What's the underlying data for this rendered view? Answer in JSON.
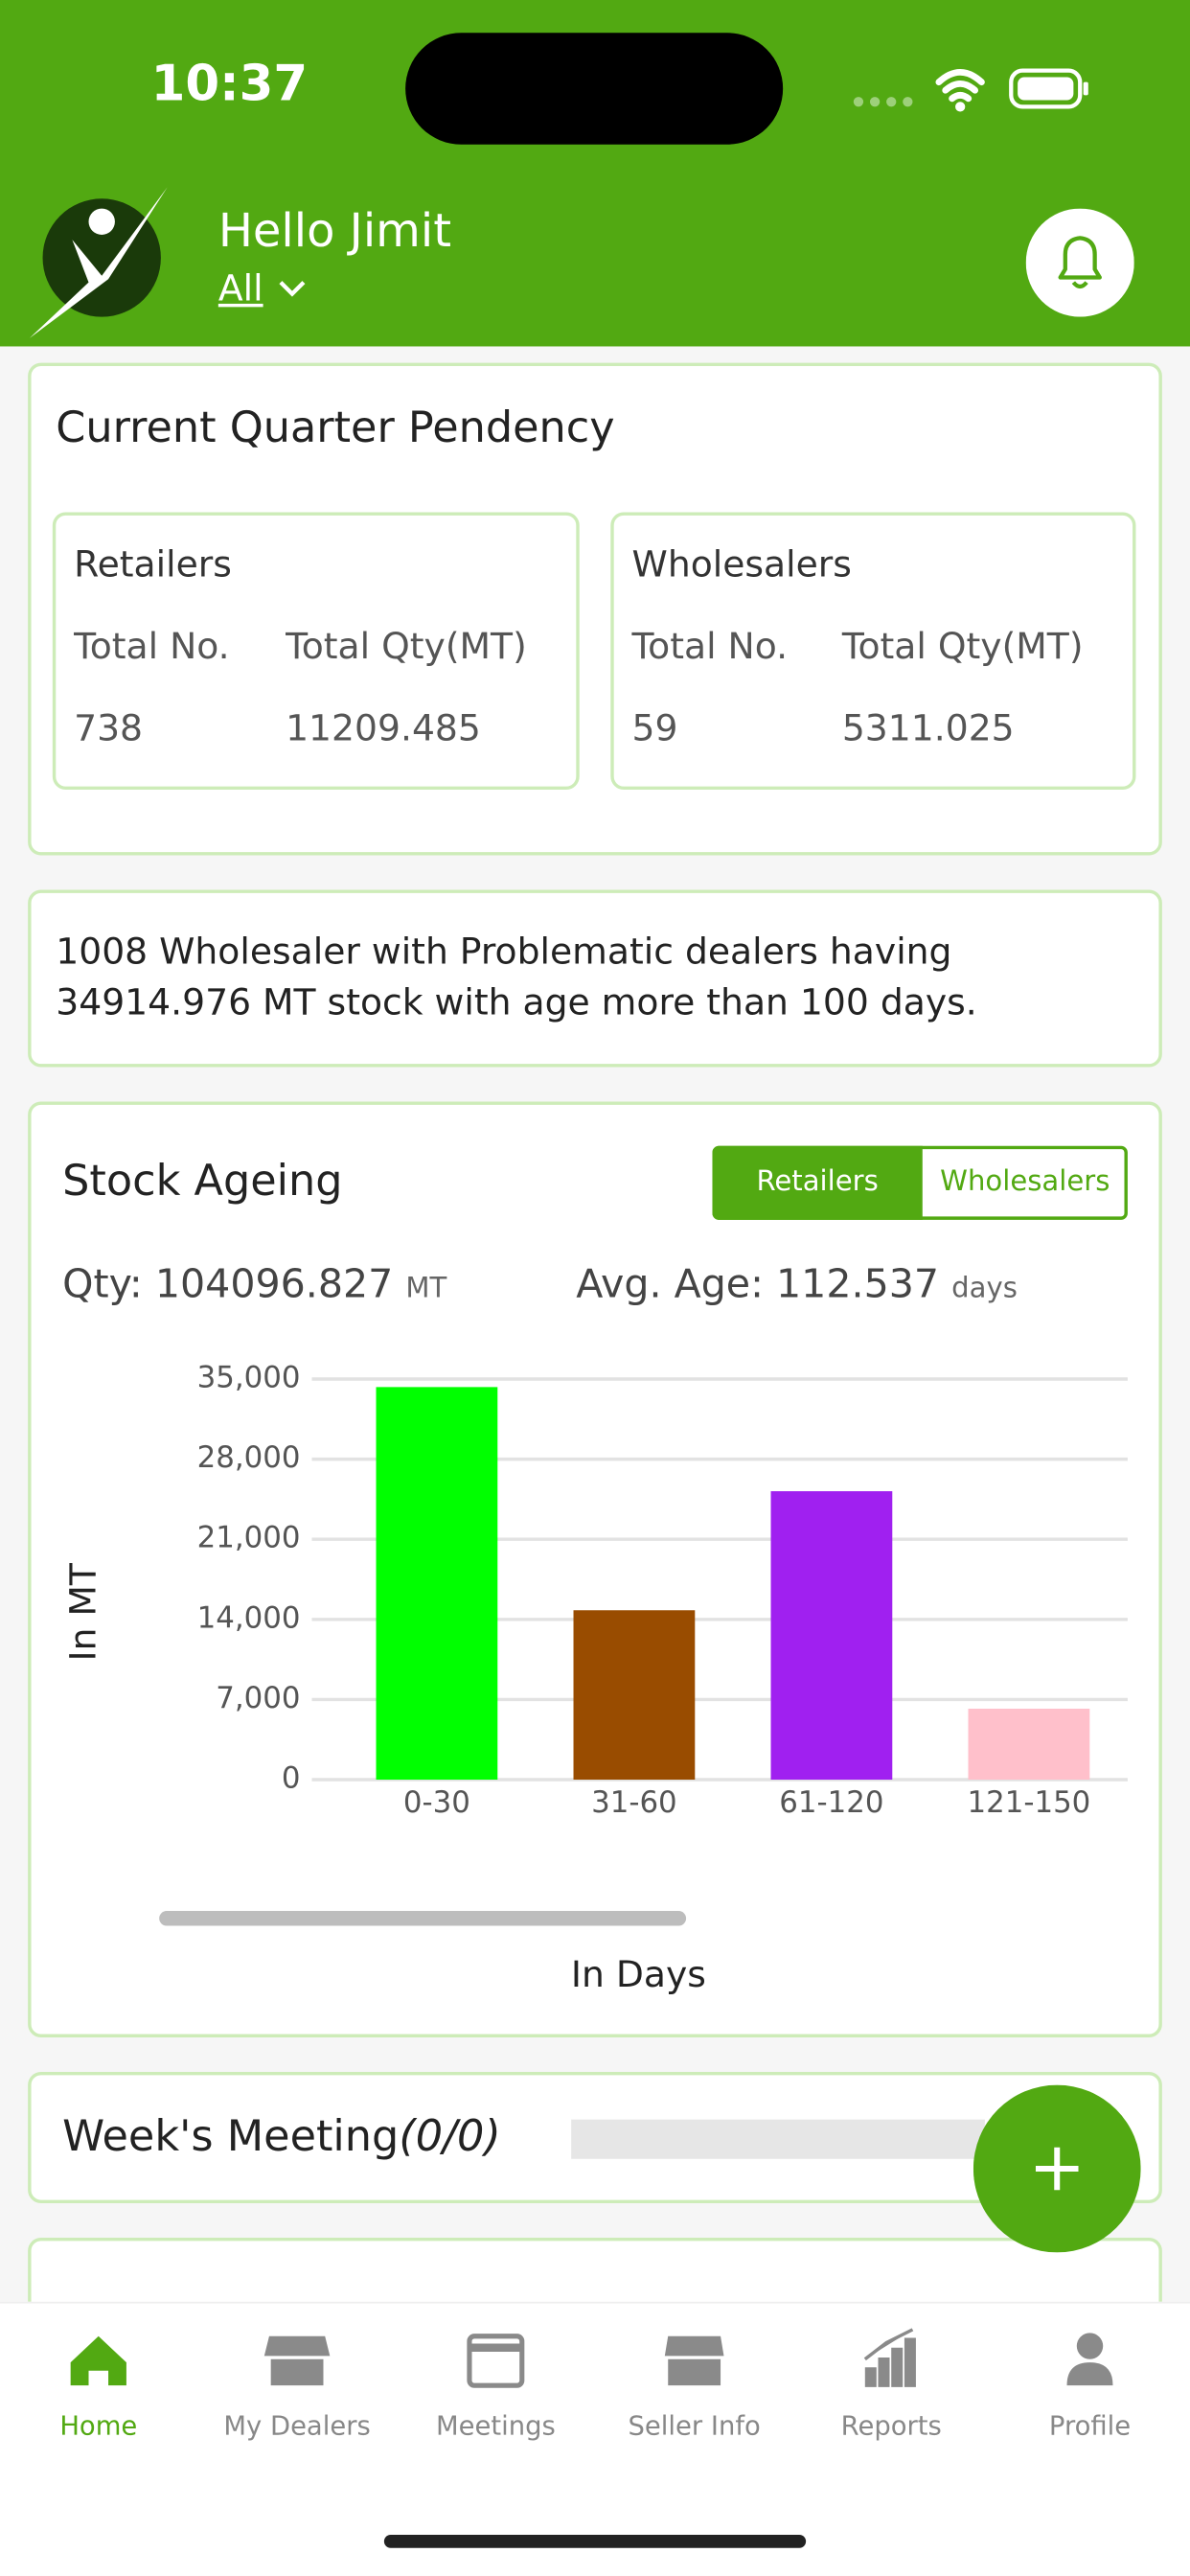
{
  "status_bar": {
    "time": "10:37"
  },
  "header": {
    "greeting": "Hello Jimit",
    "filter": "All"
  },
  "pendency": {
    "title": "Current Quarter Pendency",
    "groups": [
      {
        "name": "Retailers",
        "labels": [
          "Total No.",
          "Total Qty(MT)"
        ],
        "values": [
          "738",
          "11209.485"
        ]
      },
      {
        "name": "Wholesalers",
        "labels": [
          "Total No.",
          "Total Qty(MT)"
        ],
        "values": [
          "59",
          "5311.025"
        ]
      }
    ]
  },
  "alert": {
    "text": "1008 Wholesaler with Problematic dealers having 34914.976 MT stock with age more than 100 days."
  },
  "stock_ageing": {
    "title": "Stock Ageing",
    "toggle": [
      "Retailers",
      "Wholesalers"
    ],
    "qty_label": "Qty: 104096.827",
    "qty_unit": "MT",
    "age_label": "Avg. Age: 112.537",
    "age_unit": "days"
  },
  "chart_data": {
    "type": "bar",
    "ylabel": "In MT",
    "xlabel": "In Days",
    "categories": [
      "0-30",
      "31-60",
      "61-120",
      "121-150"
    ],
    "values": [
      34300,
      14800,
      25200,
      6200
    ],
    "colors": [
      "#00ff00",
      "#994c00",
      "#a020f0",
      "#ffc0cb"
    ],
    "ylim": [
      0,
      35000
    ],
    "yticks": [
      0,
      {
        "value": 7000,
        "label": "7,000"
      },
      {
        "value": 14000,
        "label": "14,000"
      },
      {
        "value": 21000,
        "label": "21,000"
      },
      {
        "value": 28000,
        "label": "28,000"
      },
      {
        "value": 35000,
        "label": "35,000"
      }
    ],
    "grid": true
  },
  "meeting": {
    "title": "Week's Meeting",
    "count": "(0/0)"
  },
  "tabs": [
    "Home",
    "My Dealers",
    "Meetings",
    "Seller Info",
    "Reports",
    "Profile"
  ]
}
